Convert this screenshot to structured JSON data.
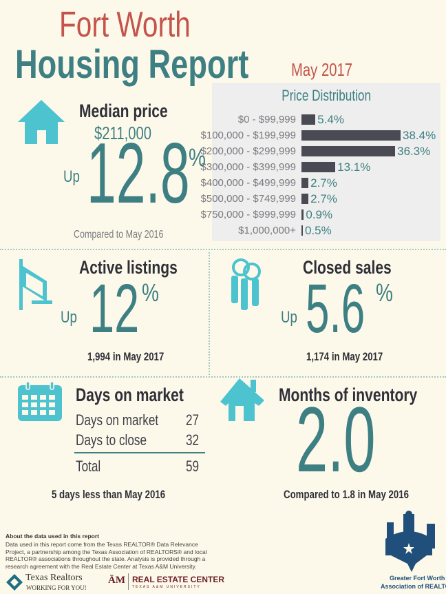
{
  "header": {
    "title_line1": "Fort Worth",
    "title_line2": "Housing Report",
    "period": "May 2017"
  },
  "median_price": {
    "heading": "Median price",
    "value": "$211,000",
    "direction": "Up",
    "change": "12.8",
    "unit": "%",
    "comparison": "Compared to May 2016"
  },
  "active_listings": {
    "heading": "Active listings",
    "direction": "Up",
    "change": "12",
    "unit": "%",
    "note": "1,994 in May 2017"
  },
  "closed_sales": {
    "heading": "Closed sales",
    "direction": "Up",
    "change": "5.6",
    "unit": "%",
    "note": "1,174 in May 2017"
  },
  "days_on_market": {
    "heading": "Days on market",
    "rows": [
      {
        "label": "Days on market",
        "value": "27"
      },
      {
        "label": "Days to close",
        "value": "32"
      }
    ],
    "total_label": "Total",
    "total_value": "59",
    "note": "5 days less than May 2016"
  },
  "months_inventory": {
    "heading": "Months of inventory",
    "value": "2.0",
    "note": "Compared to 1.8 in May 2016"
  },
  "chart_data": {
    "type": "bar",
    "orientation": "horizontal",
    "title": "Price Distribution",
    "categories": [
      "$0 - $99,999",
      "$100,000 - $199,999",
      "$200,000 - $299,999",
      "$300,000 - $399,999",
      "$400,000 - $499,999",
      "$500,000 - $749,999",
      "$750,000 - $999,999",
      "$1,000,000+"
    ],
    "values": [
      5.4,
      38.4,
      36.3,
      13.1,
      2.7,
      2.7,
      0.9,
      0.5
    ],
    "value_labels": [
      "5.4%",
      "38.4%",
      "36.3%",
      "13.1%",
      "2.7%",
      "2.7%",
      "0.9%",
      "0.5%"
    ],
    "bar_color": "#4a4a55",
    "label_color": "#3d7f82",
    "grid": false
  },
  "footer": {
    "about_heading": "About the data used in this report",
    "about_text": "Data used in this report come from the Texas REALTOR® Data Relevance Project, a partnership among the Texas Association of REALTORS® and local REALTOR® associations throughout the state. Analysis is provided through a research agreement with the Real Estate Center at Texas A&M University.",
    "logo1_name": "Texas Realtors",
    "logo1_tagline": "WORKING FOR YOU!",
    "logo2_name": "REAL ESTATE CENTER",
    "logo2_sub": "TEXAS A&M UNIVERSITY",
    "logo3_line1": "Greater Fort Worth",
    "logo3_line2": "Association of REALTORS®"
  },
  "colors": {
    "teal": "#3d7f82",
    "red": "#c4544b",
    "icon": "#4cc3cf",
    "background": "#fdf9ea",
    "navy": "#1f4f7a"
  }
}
